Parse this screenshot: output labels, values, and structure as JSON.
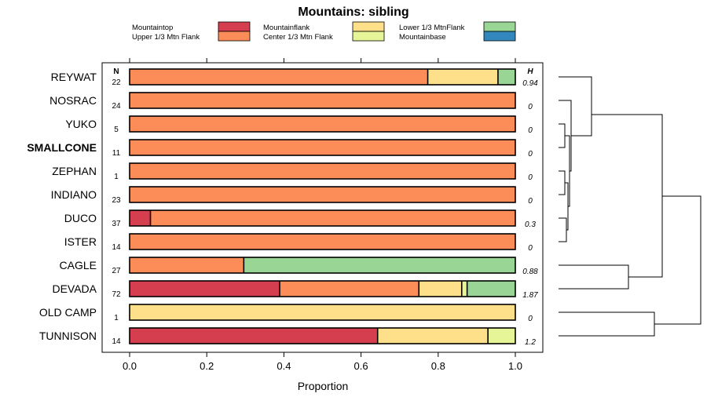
{
  "chart_data": {
    "type": "bar",
    "subtype": "stacked-horizontal-proportion-with-dendrogram",
    "title": "Mountains: sibling",
    "xlabel": "Proportion",
    "xlim": [
      0,
      1
    ],
    "xticks": [
      "0.0",
      "0.2",
      "0.4",
      "0.6",
      "0.8",
      "1.0"
    ],
    "n_header": "N",
    "h_header": "H",
    "highlighted": "SMALLCONE",
    "legend": [
      {
        "name": "Mountaintop",
        "color": "#D53E4F"
      },
      {
        "name": "Upper 1/3 Mtn Flank",
        "color": "#FC8D59"
      },
      {
        "name": "Mountainflank",
        "color": "#FEE08B"
      },
      {
        "name": "Center 1/3 Mtn Flank",
        "color": "#E6F598"
      },
      {
        "name": "Lower 1/3 MtnFlank",
        "color": "#99D594"
      },
      {
        "name": "Mountainbase",
        "color": "#3288BD"
      }
    ],
    "categories": [
      "REYWAT",
      "NOSRAC",
      "YUKO",
      "SMALLCONE",
      "ZEPHAN",
      "INDIANO",
      "DUCO",
      "ISTER",
      "CAGLE",
      "DEVADA",
      "OLD CAMP",
      "TUNNISON"
    ],
    "n": [
      "22",
      "24",
      "5",
      "11",
      "1",
      "23",
      "37",
      "14",
      "27",
      "72",
      "1",
      "14"
    ],
    "h": [
      "0.94",
      "0",
      "0",
      "0",
      "0",
      "0",
      "0.3",
      "0",
      "0.88",
      "1.87",
      "0",
      "1.2"
    ],
    "series": [
      {
        "name": "Mountaintop",
        "values": [
          0,
          0,
          0,
          0,
          0,
          0,
          0.054,
          0,
          0,
          0.389,
          0,
          0.643
        ]
      },
      {
        "name": "Upper 1/3 Mtn Flank",
        "values": [
          0.773,
          1,
          1,
          1,
          1,
          1,
          0.946,
          1,
          0.296,
          0.361,
          0,
          0
        ]
      },
      {
        "name": "Mountainflank",
        "values": [
          0.182,
          0,
          0,
          0,
          0,
          0,
          0,
          0,
          0,
          0.111,
          1,
          0.286
        ]
      },
      {
        "name": "Center 1/3 Mtn Flank",
        "values": [
          0,
          0,
          0,
          0,
          0,
          0,
          0,
          0,
          0,
          0.014,
          0,
          0.071
        ]
      },
      {
        "name": "Lower 1/3 MtnFlank",
        "values": [
          0.045,
          0,
          0,
          0,
          0,
          0,
          0,
          0,
          0.704,
          0.125,
          0,
          0
        ]
      },
      {
        "name": "Mountainbase",
        "values": [
          0,
          0,
          0,
          0,
          0,
          0,
          0,
          0,
          0,
          0,
          0,
          0
        ]
      }
    ]
  }
}
